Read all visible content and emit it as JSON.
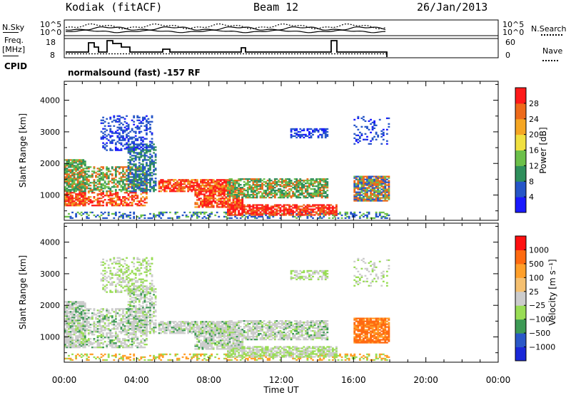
{
  "header": {
    "station": "Kodiak (fitACF)",
    "beam": "Beam 12",
    "date": "26/Jan/2013"
  },
  "strip": {
    "nsky_label": "N.Sky",
    "nsearch_label": "N.Search",
    "freq_label": "Freq.",
    "freq_unit": "[MHz]",
    "nave_label": "Nave",
    "cpid_label": "CPID",
    "cpid_text": "normalsound (fast) -157 RF",
    "noise_ticks": [
      "10^5",
      "10^0"
    ],
    "freq_ticks": [
      "18",
      "8"
    ],
    "nave_ticks": [
      "60",
      "0"
    ]
  },
  "colors": {
    "power": [
      "#1a1aff",
      "#2656c8",
      "#2f8f5c",
      "#6cc04a",
      "#f0e040",
      "#f5a623",
      "#ee6a1a",
      "#ff1a1a"
    ],
    "velocity": [
      "#ff1010",
      "#ff6a10",
      "#ff9f2a",
      "#f5c070",
      "#cccccc",
      "#99dd55",
      "#3d9a55",
      "#2a58c8",
      "#1a28d8"
    ]
  },
  "chart_data": [
    {
      "type": "heatmap",
      "name": "power-panel",
      "xlabel": "",
      "ylabel": "Slant Range [km]",
      "x_ticks": [
        "00:00",
        "04:00",
        "08:00",
        "12:00",
        "16:00",
        "20:00",
        "00:00"
      ],
      "y_ticks": [
        1000,
        2000,
        3000,
        4000
      ],
      "ylim": [
        200,
        4600
      ],
      "xlim_hours": [
        0,
        24
      ],
      "colorbar_label": "Power [dB]",
      "colorbar_ticks": [
        "4",
        "8",
        "12",
        "16",
        "20",
        "24",
        "28"
      ],
      "colorbar_range": [
        0,
        32
      ]
    },
    {
      "type": "heatmap",
      "name": "velocity-panel",
      "xlabel": "Time UT",
      "ylabel": "Slant Range [km]",
      "x_ticks": [
        "00:00",
        "04:00",
        "08:00",
        "12:00",
        "16:00",
        "20:00",
        "00:00"
      ],
      "y_ticks": [
        1000,
        2000,
        3000,
        4000
      ],
      "ylim": [
        200,
        4600
      ],
      "xlim_hours": [
        0,
        24
      ],
      "colorbar_label": "Velocity [m s⁻¹]",
      "colorbar_ticks": [
        "1000",
        "500",
        "100",
        "25",
        "−25",
        "−100",
        "−500",
        "−1000"
      ]
    }
  ]
}
